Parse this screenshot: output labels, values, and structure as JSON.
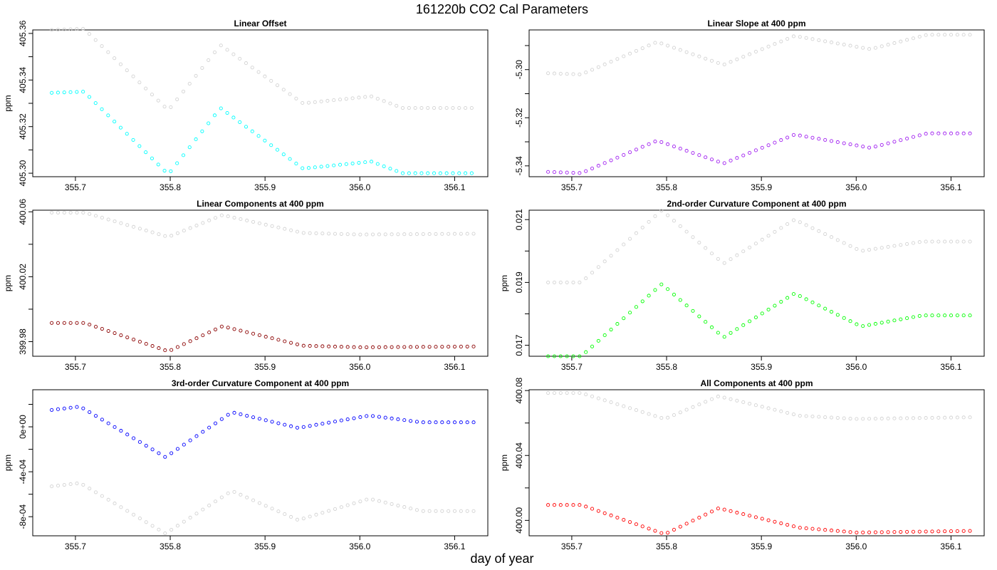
{
  "figure": {
    "title": "161220b   CO2 Cal Parameters",
    "xlabel": "day of year"
  },
  "chart_data": [
    {
      "type": "scatter",
      "title": "Linear Offset",
      "ylabel": "ppm",
      "xlim": [
        355.655,
        356.135
      ],
      "ylim": [
        405.2985,
        405.3615
      ],
      "xticks": [
        "355.7",
        "355.8",
        "355.9",
        "356.0",
        "356.1"
      ],
      "yticks": [
        {
          "v": 405.3,
          "label": "405.30"
        },
        {
          "v": 405.32,
          "label": "405.32"
        },
        {
          "v": 405.34,
          "label": "405.34"
        },
        {
          "v": 405.36,
          "label": "405.36"
        }
      ],
      "series": [
        {
          "color": "#d3d3d3",
          "points": [
            [
              355.675,
              405.3615
            ],
            [
              355.709,
              405.362
            ],
            [
              355.798,
              405.327
            ],
            [
              355.853,
              405.355
            ],
            [
              355.94,
              405.33
            ],
            [
              356.012,
              405.333
            ],
            [
              356.045,
              405.328
            ],
            [
              356.118,
              405.328
            ]
          ]
        },
        {
          "color": "#00ffff",
          "points": [
            [
              355.675,
              405.3345
            ],
            [
              355.709,
              405.335
            ],
            [
              355.798,
              405.2995
            ],
            [
              355.853,
              405.328
            ],
            [
              355.94,
              405.302
            ],
            [
              356.012,
              405.305
            ],
            [
              356.045,
              405.3
            ],
            [
              356.118,
              405.3
            ]
          ]
        }
      ]
    },
    {
      "type": "scatter",
      "title": "Linear Slope at 400 ppm",
      "ylabel": "",
      "xlim": [
        355.655,
        356.135
      ],
      "ylim": [
        -5.3445,
        -5.2835
      ],
      "xticks": [
        "355.7",
        "355.8",
        "355.9",
        "356.0",
        "356.1"
      ],
      "yticks": [
        {
          "v": -5.34,
          "label": "-5.34"
        },
        {
          "v": -5.32,
          "label": "-5.32"
        },
        {
          "v": -5.3,
          "label": "-5.30"
        }
      ],
      "series": [
        {
          "color": "#d3d3d3",
          "points": [
            [
              355.675,
              -5.3015
            ],
            [
              355.71,
              -5.302
            ],
            [
              355.79,
              -5.2885
            ],
            [
              355.86,
              -5.298
            ],
            [
              355.935,
              -5.286
            ],
            [
              356.015,
              -5.2915
            ],
            [
              356.075,
              -5.2855
            ],
            [
              356.12,
              -5.2855
            ]
          ]
        },
        {
          "color": "#a020f0",
          "points": [
            [
              355.675,
              -5.3425
            ],
            [
              355.71,
              -5.343
            ],
            [
              355.79,
              -5.3295
            ],
            [
              355.86,
              -5.339
            ],
            [
              355.935,
              -5.327
            ],
            [
              356.015,
              -5.3325
            ],
            [
              356.075,
              -5.3265
            ],
            [
              356.12,
              -5.3265
            ]
          ]
        }
      ]
    },
    {
      "type": "scatter",
      "title": "Linear Components at 400 ppm",
      "ylabel": "ppm",
      "xlim": [
        355.655,
        356.135
      ],
      "ylim": [
        399.971,
        400.061
      ],
      "xticks": [
        "355.7",
        "355.8",
        "355.9",
        "356.0",
        "356.1"
      ],
      "yticks": [
        {
          "v": 399.98,
          "label": "399.98"
        },
        {
          "v": 400.02,
          "label": "400.02"
        },
        {
          "v": 400.06,
          "label": "400.06"
        }
      ],
      "series": [
        {
          "color": "#d3d3d3",
          "points": [
            [
              355.675,
              400.0595
            ],
            [
              355.71,
              400.0595
            ],
            [
              355.798,
              400.0445
            ],
            [
              355.855,
              400.058
            ],
            [
              355.94,
              400.047
            ],
            [
              356.0,
              400.046
            ],
            [
              356.12,
              400.0465
            ]
          ]
        },
        {
          "color": "#8b0000",
          "points": [
            [
              355.675,
              399.9915
            ],
            [
              355.71,
              399.9915
            ],
            [
              355.798,
              399.974
            ],
            [
              355.855,
              399.9895
            ],
            [
              355.94,
              399.9775
            ],
            [
              356.0,
              399.9765
            ],
            [
              356.12,
              399.977
            ]
          ]
        }
      ]
    },
    {
      "type": "scatter",
      "title": "2nd-order Curvature Component at 400 ppm",
      "ylabel": "ppm",
      "xlim": [
        355.655,
        356.135
      ],
      "ylim": [
        0.01665,
        0.0213
      ],
      "xticks": [
        "355.7",
        "355.8",
        "355.9",
        "356.0",
        "356.1"
      ],
      "yticks": [
        {
          "v": 0.017,
          "label": "0.017"
        },
        {
          "v": 0.019,
          "label": "0.019"
        },
        {
          "v": 0.021,
          "label": "0.021"
        }
      ],
      "series": [
        {
          "color": "#d3d3d3",
          "points": [
            [
              355.675,
              0.019
            ],
            [
              355.71,
              0.019
            ],
            [
              355.795,
              0.0213
            ],
            [
              355.86,
              0.0196
            ],
            [
              355.935,
              0.021
            ],
            [
              356.005,
              0.02
            ],
            [
              356.07,
              0.0203
            ],
            [
              356.12,
              0.0203
            ]
          ]
        },
        {
          "color": "#00ff00",
          "points": [
            [
              355.675,
              0.01665
            ],
            [
              355.71,
              0.01665
            ],
            [
              355.795,
              0.01895
            ],
            [
              355.86,
              0.01725
            ],
            [
              355.935,
              0.01865
            ],
            [
              356.005,
              0.0176
            ],
            [
              356.07,
              0.01795
            ],
            [
              356.12,
              0.01795
            ]
          ]
        }
      ]
    },
    {
      "type": "scatter",
      "title": "3rd-order Curvature Component at 400 ppm",
      "ylabel": "ppm",
      "xlim": [
        355.655,
        356.135
      ],
      "ylim": [
        -0.00097,
        0.00033
      ],
      "xticks": [
        "355.7",
        "355.8",
        "355.9",
        "356.0",
        "356.1"
      ],
      "yticks": [
        {
          "v": -0.0008,
          "label": "-8e-04"
        },
        {
          "v": -0.0004,
          "label": "-4e-04"
        },
        {
          "v": 0,
          "label": "0e+00"
        }
      ],
      "series": [
        {
          "color": "#d3d3d3",
          "points": [
            [
              355.675,
              -0.00053
            ],
            [
              355.705,
              -0.0005
            ],
            [
              355.795,
              -0.00095
            ],
            [
              355.865,
              -0.00057
            ],
            [
              355.935,
              -0.00083
            ],
            [
              356.01,
              -0.00064
            ],
            [
              356.065,
              -0.00075
            ],
            [
              356.12,
              -0.00075
            ]
          ]
        },
        {
          "color": "#0000ff",
          "points": [
            [
              355.675,
              0.00015
            ],
            [
              355.705,
              0.00018
            ],
            [
              355.795,
              -0.00027
            ],
            [
              355.865,
              0.00013
            ],
            [
              355.935,
              -1e-05
            ],
            [
              356.01,
              0.0001
            ],
            [
              356.065,
              4e-05
            ],
            [
              356.12,
              4e-05
            ]
          ]
        }
      ]
    },
    {
      "type": "scatter",
      "title": "All Components at 400 ppm",
      "ylabel": "ppm",
      "xlim": [
        355.655,
        356.135
      ],
      "ylim": [
        399.9905,
        400.0805
      ],
      "xticks": [
        "355.7",
        "355.8",
        "355.9",
        "356.0",
        "356.1"
      ],
      "yticks": [
        {
          "v": 400.0,
          "label": "400.00"
        },
        {
          "v": 400.04,
          "label": "400.04"
        },
        {
          "v": 400.08,
          "label": "400.08"
        }
      ],
      "series": [
        {
          "color": "#d3d3d3",
          "points": [
            [
              355.675,
              400.0785
            ],
            [
              355.71,
              400.0785
            ],
            [
              355.798,
              400.0625
            ],
            [
              355.855,
              400.0765
            ],
            [
              355.94,
              400.0645
            ],
            [
              356.0,
              400.0625
            ],
            [
              356.12,
              400.0635
            ]
          ]
        },
        {
          "color": "#ff0000",
          "points": [
            [
              355.675,
              400.0095
            ],
            [
              355.71,
              400.0095
            ],
            [
              355.798,
              399.9915
            ],
            [
              355.855,
              400.0075
            ],
            [
              355.94,
              399.9955
            ],
            [
              356.0,
              399.9925
            ],
            [
              356.12,
              399.9935
            ]
          ]
        }
      ]
    }
  ]
}
